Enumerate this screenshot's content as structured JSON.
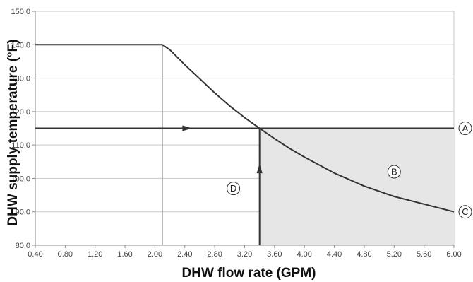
{
  "chart_data": {
    "type": "line",
    "title": "",
    "xlabel": "DHW flow rate (GPM)",
    "ylabel": "DHW supply temperature (°F)",
    "xlim": [
      0.4,
      6.0
    ],
    "ylim": [
      80.0,
      150.0
    ],
    "x_ticks": [
      "0.40",
      "0.80",
      "1.20",
      "1.60",
      "2.00",
      "2.40",
      "2.80",
      "3.20",
      "3.60",
      "4.00",
      "4.40",
      "4.80",
      "5.20",
      "5.60",
      "6.00"
    ],
    "y_ticks": [
      "80.0",
      "90.0",
      "100.0",
      "110.0",
      "120.0",
      "130.0",
      "140.0",
      "150.0"
    ],
    "grid": true,
    "series": [
      {
        "x": [
          0.4,
          2.0,
          2.1,
          2.2,
          2.4,
          2.6,
          2.8,
          3.0,
          3.2,
          3.4,
          3.6,
          3.8,
          4.0,
          4.4,
          4.8,
          5.2,
          5.6,
          6.0
        ],
        "values": [
          140.0,
          140.0,
          140.0,
          138.5,
          134.0,
          129.8,
          125.6,
          121.7,
          118.2,
          115.0,
          111.9,
          109.0,
          106.4,
          101.6,
          97.7,
          94.6,
          92.3,
          90.0
        ]
      }
    ],
    "reference_lines": {
      "horizontal_y": 115.0,
      "vertical_x": 3.4,
      "drop_line_x": 2.1
    },
    "shaded_region": {
      "x_from": 3.4,
      "x_to": 6.0,
      "y_from": 80.0,
      "y_to": 115.0
    },
    "callouts": [
      {
        "label": "A",
        "x": 6.0,
        "y": 115.0
      },
      {
        "label": "B",
        "x": 5.2,
        "y": 102.0
      },
      {
        "label": "C",
        "x": 6.0,
        "y": 90.0
      },
      {
        "label": "D",
        "x": 3.05,
        "y": 97.0
      }
    ]
  },
  "colors": {
    "curve": "#333333",
    "grid": "#c8c8c8",
    "shade": "#e6e6e6",
    "axis": "#8a8a8a"
  }
}
